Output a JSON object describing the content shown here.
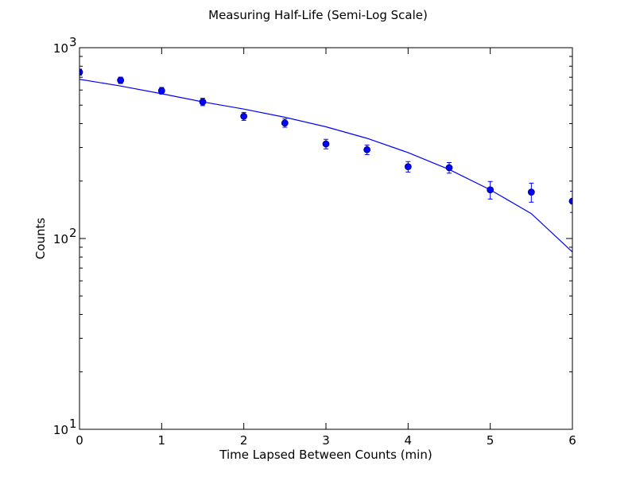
{
  "chart_data": {
    "type": "scatter",
    "title": "Measuring Half-Life (Semi-Log Scale)",
    "xlabel": "Time Lapsed Between Counts (min)",
    "ylabel": "Counts",
    "xlim": [
      0,
      6
    ],
    "ylim": [
      10,
      1000
    ],
    "yscale": "log",
    "x_ticks": [
      "0",
      "1",
      "2",
      "3",
      "4",
      "5",
      "6"
    ],
    "y_ticks": [
      {
        "base": "10",
        "exp": "1"
      },
      {
        "base": "10",
        "exp": "2"
      },
      {
        "base": "10",
        "exp": "3"
      }
    ],
    "grid": false,
    "color": "#0000ff",
    "series": [
      {
        "kind": "errorbar-points",
        "x": [
          0,
          0.5,
          1,
          1.5,
          2,
          2.5,
          3,
          3.5,
          4,
          4.5,
          5,
          5.5,
          6
        ],
        "y": [
          745,
          675,
          595,
          520,
          437,
          403,
          313,
          292,
          238,
          235,
          180,
          175,
          157
        ],
        "yerr": [
          27,
          26,
          24,
          23,
          21,
          20,
          18,
          17,
          15,
          15,
          19,
          20,
          20
        ]
      },
      {
        "kind": "fit-line",
        "x": [
          0,
          0.5,
          1,
          1.5,
          2,
          2.5,
          3,
          3.5,
          4,
          4.5,
          5,
          5.5,
          6
        ],
        "y": [
          683,
          630,
          574,
          520,
          477,
          432,
          385,
          335,
          282,
          230,
          180,
          135,
          85
        ]
      }
    ]
  }
}
